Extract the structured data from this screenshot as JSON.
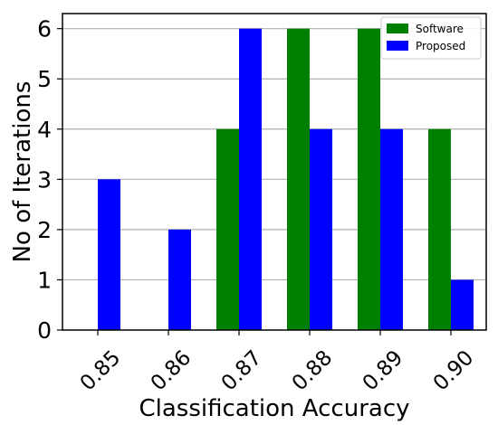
{
  "chart_data": {
    "type": "bar",
    "title": "",
    "xlabel": "Classification Accuracy",
    "ylabel": "No of Iterations",
    "categories": [
      "0.85",
      "0.86",
      "0.87",
      "0.88",
      "0.89",
      "0.90"
    ],
    "series": [
      {
        "name": "Software",
        "color": "#008000",
        "values": [
          0,
          0,
          4,
          6,
          6,
          4
        ]
      },
      {
        "name": "Proposed",
        "color": "#0000ff",
        "values": [
          3,
          2,
          6,
          4,
          4,
          1
        ]
      }
    ],
    "ylim": [
      0,
      6.3
    ],
    "yticks": [
      "0",
      "1",
      "2",
      "3",
      "4",
      "5",
      "6"
    ],
    "grid": "horizontal",
    "legend": "top-right"
  }
}
